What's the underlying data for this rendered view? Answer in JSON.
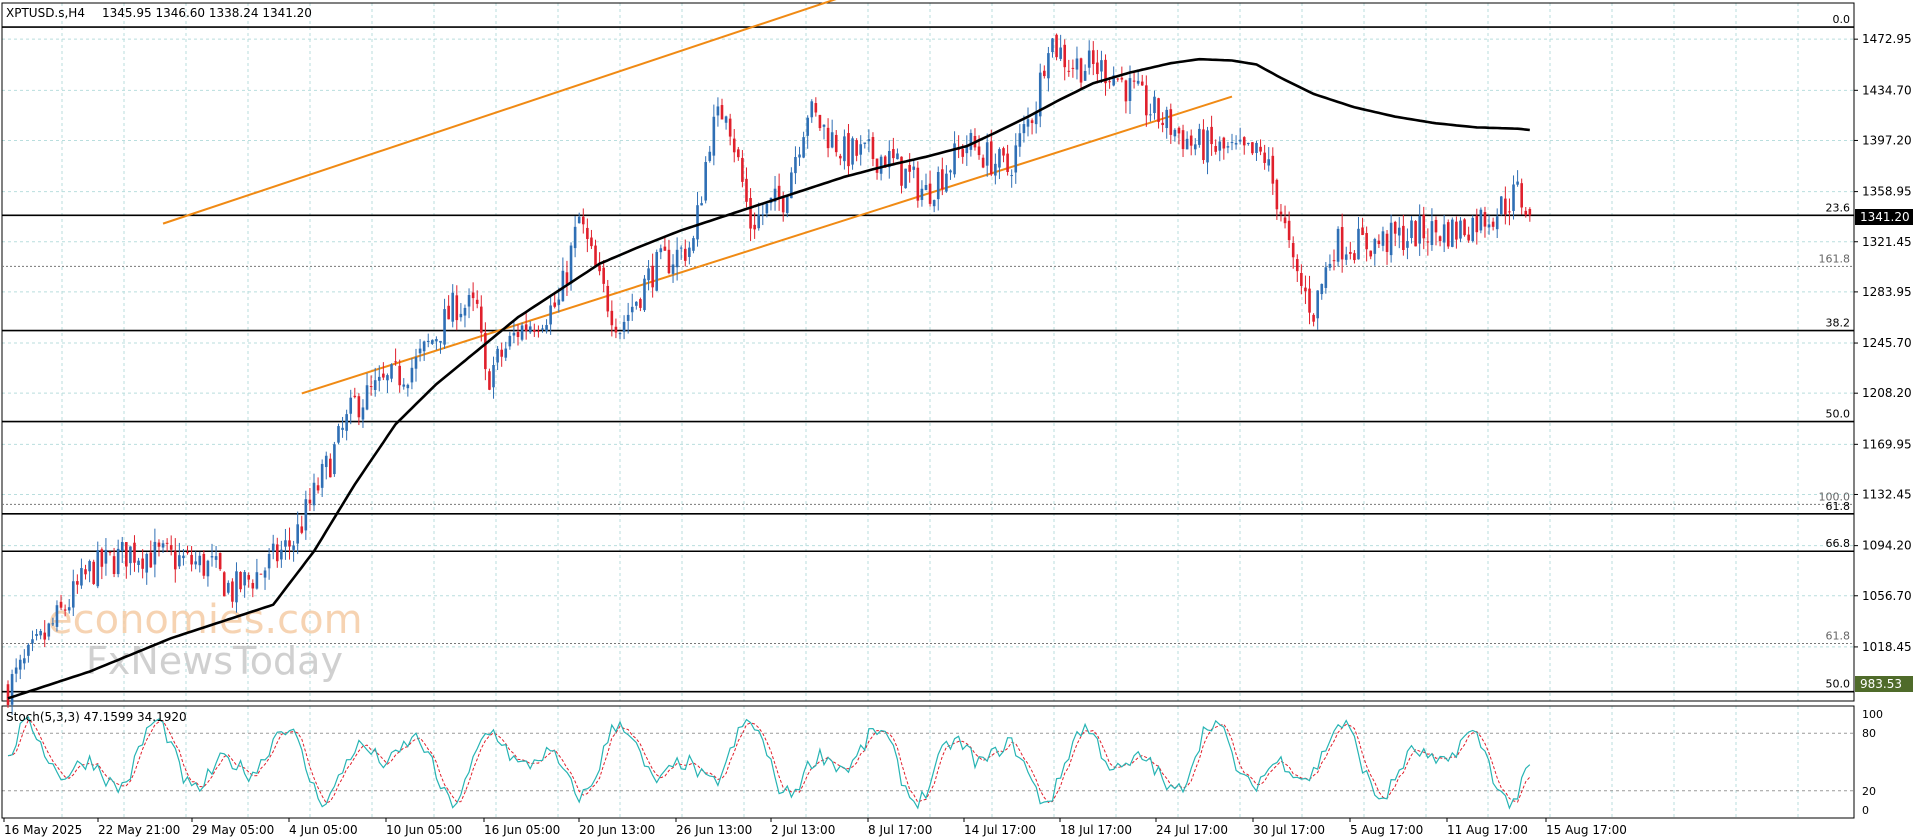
{
  "header": {
    "symbol": "XPTUSD.s,H4",
    "ohlc": "1345.95 1346.60 1338.24 1341.20"
  },
  "indicator": {
    "label": "Stoch(5,3,3) 47.1599 34.1920",
    "scale_labels": [
      "100",
      "80",
      "20",
      "0"
    ]
  },
  "watermark": {
    "line1": "economies.com",
    "line2": "FxNewsToday"
  },
  "colors": {
    "background": "#ffffff",
    "grid": "#b9dede",
    "bull_candle": "#2f6fb5",
    "bear_candle": "#e0202c",
    "moving_average": "#000000",
    "channel": "#f08a14",
    "fib_lines": "#000000",
    "stoch_main": "#27b4b4",
    "stoch_signal": "#e0202c",
    "price_tag_bg": "#000000",
    "low_tag_bg": "#4f6b2a"
  },
  "chart_data": {
    "type": "candlestick",
    "symbol": "XPTUSD.s",
    "timeframe": "H4",
    "ylim": [
      978,
      1500
    ],
    "y_ticks": [
      "1472.95",
      "1434.70",
      "1397.20",
      "1358.95",
      "1321.45",
      "1283.95",
      "1245.70",
      "1208.20",
      "1169.95",
      "1132.45",
      "1094.20",
      "1056.70",
      "1018.45"
    ],
    "x_ticks": [
      "16 May 2025",
      "22 May 21:00",
      "29 May 05:00",
      "4 Jun 05:00",
      "10 Jun 05:00",
      "16 Jun 05:00",
      "20 Jun 13:00",
      "26 Jun 13:00",
      "2 Jul 13:00",
      "8 Jul 17:00",
      "14 Jul 17:00",
      "18 Jul 17:00",
      "24 Jul 17:00",
      "30 Jul 17:00",
      "5 Aug 17:00",
      "11 Aug 17:00",
      "15 Aug 17:00"
    ],
    "current_price": "1341.20",
    "low_marker": "983.53",
    "price_path": [
      [
        0,
        988
      ],
      [
        10,
        1030
      ],
      [
        20,
        1075
      ],
      [
        30,
        1090
      ],
      [
        40,
        1085
      ],
      [
        50,
        1078
      ],
      [
        55,
        1060
      ],
      [
        62,
        1075
      ],
      [
        70,
        1098
      ],
      [
        80,
        1165
      ],
      [
        85,
        1200
      ],
      [
        100,
        1230
      ],
      [
        110,
        1275
      ],
      [
        115,
        1270
      ],
      [
        117,
        1218
      ],
      [
        125,
        1255
      ],
      [
        135,
        1275
      ],
      [
        140,
        1338
      ],
      [
        145,
        1290
      ],
      [
        150,
        1258
      ],
      [
        158,
        1300
      ],
      [
        168,
        1320
      ],
      [
        172,
        1400
      ],
      [
        176,
        1425
      ],
      [
        182,
        1335
      ],
      [
        190,
        1355
      ],
      [
        196,
        1420
      ],
      [
        205,
        1388
      ],
      [
        215,
        1385
      ],
      [
        225,
        1358
      ],
      [
        235,
        1395
      ],
      [
        245,
        1375
      ],
      [
        252,
        1425
      ],
      [
        255,
        1475
      ],
      [
        260,
        1455
      ],
      [
        270,
        1450
      ],
      [
        280,
        1420
      ],
      [
        290,
        1395
      ],
      [
        300,
        1388
      ],
      [
        308,
        1385
      ],
      [
        312,
        1345
      ],
      [
        315,
        1300
      ],
      [
        320,
        1270
      ],
      [
        325,
        1320
      ],
      [
        335,
        1320
      ],
      [
        345,
        1328
      ],
      [
        355,
        1330
      ],
      [
        365,
        1345
      ],
      [
        370,
        1358
      ],
      [
        373,
        1341.2
      ]
    ],
    "moving_average": [
      [
        0,
        980
      ],
      [
        20,
        1000
      ],
      [
        40,
        1025
      ],
      [
        55,
        1040
      ],
      [
        65,
        1050
      ],
      [
        75,
        1090
      ],
      [
        85,
        1140
      ],
      [
        95,
        1185
      ],
      [
        105,
        1215
      ],
      [
        115,
        1240
      ],
      [
        125,
        1265
      ],
      [
        135,
        1285
      ],
      [
        145,
        1305
      ],
      [
        155,
        1318
      ],
      [
        165,
        1330
      ],
      [
        175,
        1340
      ],
      [
        185,
        1350
      ],
      [
        195,
        1360
      ],
      [
        205,
        1370
      ],
      [
        215,
        1378
      ],
      [
        225,
        1385
      ],
      [
        235,
        1393
      ],
      [
        242,
        1403
      ],
      [
        250,
        1415
      ],
      [
        258,
        1428
      ],
      [
        266,
        1440
      ],
      [
        275,
        1448
      ],
      [
        285,
        1455
      ],
      [
        292,
        1458
      ],
      [
        300,
        1457
      ],
      [
        306,
        1454
      ],
      [
        312,
        1444
      ],
      [
        320,
        1432
      ],
      [
        330,
        1422
      ],
      [
        340,
        1415
      ],
      [
        350,
        1410
      ],
      [
        360,
        1407
      ],
      [
        370,
        1406
      ],
      [
        373,
        1405
      ]
    ],
    "channel_lines": [
      {
        "from": [
          38,
          1335
        ],
        "to": [
          205,
          1505
        ]
      },
      {
        "from": [
          72,
          1208
        ],
        "to": [
          300,
          1430
        ]
      }
    ],
    "fib_levels": [
      {
        "label": "0.0",
        "price": 1482,
        "style": "solid"
      },
      {
        "label": "23.6",
        "price": 1341.2,
        "style": "solid"
      },
      {
        "label": "161.8",
        "price": 1303,
        "style": "dotted"
      },
      {
        "label": "38.2",
        "price": 1255,
        "style": "solid"
      },
      {
        "label": "50.0",
        "price": 1187,
        "style": "solid"
      },
      {
        "label": "100.0",
        "price": 1125,
        "style": "dotted"
      },
      {
        "label": "61.8",
        "price": 1118,
        "style": "solid"
      },
      {
        "label": "66.8",
        "price": 1090,
        "style": "solid"
      },
      {
        "label": "61.8",
        "price": 1021,
        "style": "dotted"
      },
      {
        "label": "50.0",
        "price": 985,
        "style": "solid"
      }
    ],
    "stochastic": {
      "main": 47.1599,
      "signal": 34.192,
      "levels": [
        80,
        20
      ],
      "range": [
        0,
        100
      ]
    }
  }
}
